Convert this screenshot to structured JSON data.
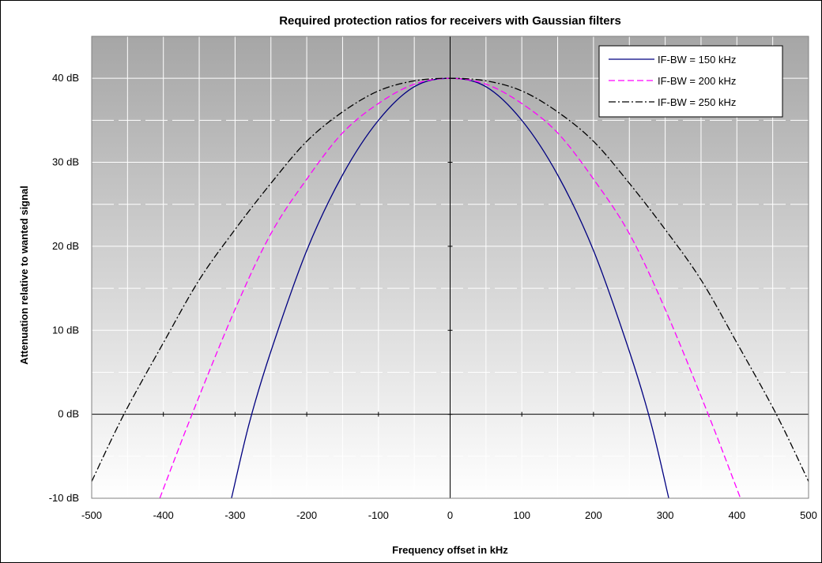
{
  "chart_data": {
    "type": "line",
    "title": "Required protection ratios for receivers with Gaussian filters",
    "xlabel": "Frequency offset in kHz",
    "ylabel": "Attenuation relative to wanted signal",
    "xlim": [
      -500,
      500
    ],
    "ylim": [
      -10,
      45
    ],
    "x_ticks": [
      {
        "value": -500,
        "label": "-500"
      },
      {
        "value": -400,
        "label": "-400"
      },
      {
        "value": -300,
        "label": "-300"
      },
      {
        "value": -200,
        "label": "-200"
      },
      {
        "value": -100,
        "label": "-100"
      },
      {
        "value": 0,
        "label": "0"
      },
      {
        "value": 100,
        "label": "100"
      },
      {
        "value": 200,
        "label": "200"
      },
      {
        "value": 300,
        "label": "300"
      },
      {
        "value": 400,
        "label": "400"
      },
      {
        "value": 500,
        "label": "500"
      }
    ],
    "y_ticks": [
      {
        "value": -10,
        "label": "-10 dB"
      },
      {
        "value": 0,
        "label": "0 dB"
      },
      {
        "value": 10,
        "label": "10 dB"
      },
      {
        "value": 20,
        "label": "20 dB"
      },
      {
        "value": 30,
        "label": "30 dB"
      },
      {
        "value": 40,
        "label": "40 dB"
      }
    ],
    "grid": true,
    "legend_position": "top-right",
    "colors": {
      "plot_gradient_top": "#a6a6a6",
      "plot_gradient_bottom": "#ffffff",
      "grid_major": "#ffffff",
      "axis": "#000000"
    },
    "series": [
      {
        "name": "IF-BW = 150 kHz",
        "color": "#000080",
        "dash": "solid",
        "x": [
          -305,
          -280,
          -250,
          -200,
          -150,
          -100,
          -50,
          0,
          50,
          100,
          150,
          200,
          250,
          280,
          305
        ],
        "y": [
          -10,
          -1,
          7.5,
          19.5,
          28.5,
          35,
          39,
          40,
          39,
          35,
          28.5,
          19.5,
          7.5,
          -1,
          -10
        ]
      },
      {
        "name": "IF-BW = 200 kHz",
        "color": "#ff00ff",
        "dash": "dashed",
        "x": [
          -405,
          -360,
          -300,
          -250,
          -200,
          -150,
          -100,
          -50,
          0,
          50,
          100,
          150,
          200,
          250,
          300,
          360,
          405
        ],
        "y": [
          -10,
          0,
          12.5,
          21.5,
          28,
          33.5,
          37,
          39.3,
          40,
          39.3,
          37,
          33.5,
          28,
          21.5,
          12.5,
          0,
          -10
        ]
      },
      {
        "name": "IF-BW = 250 kHz",
        "color": "#000000",
        "dash": "dash-dot",
        "x": [
          -500,
          -455,
          -400,
          -350,
          -300,
          -250,
          -200,
          -150,
          -100,
          -50,
          0,
          50,
          100,
          150,
          200,
          250,
          300,
          350,
          400,
          455,
          500
        ],
        "y": [
          -8,
          0,
          8.5,
          16,
          22,
          27.5,
          32.5,
          36,
          38.5,
          39.7,
          40,
          39.7,
          38.5,
          36,
          32.5,
          27.5,
          22,
          16,
          8.5,
          0,
          -8
        ]
      }
    ]
  }
}
